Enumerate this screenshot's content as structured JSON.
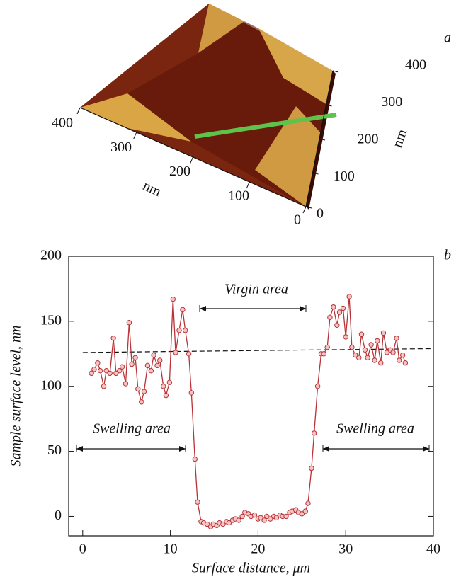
{
  "chart_data": [
    {
      "type": "surface",
      "panel_label": "a",
      "xlabel": "nm",
      "ylabel": "nm",
      "xticks": [
        0,
        100,
        200,
        300,
        400
      ],
      "yticks": [
        0,
        100,
        200,
        300,
        400
      ],
      "xlim": [
        0,
        400
      ],
      "ylim": [
        0,
        400
      ]
    },
    {
      "type": "line",
      "panel_label": "b",
      "xlabel": "Surface distance, μm",
      "ylabel": "Sample surface level, nm",
      "xlim": [
        -1.6,
        40
      ],
      "ylim": [
        -15,
        200
      ],
      "xticks": [
        0,
        10,
        20,
        30,
        40
      ],
      "yticks": [
        0,
        50,
        100,
        150,
        200
      ],
      "annotations": [
        "Virgin area",
        "Swelling area",
        "Swelling area"
      ],
      "reference_line": {
        "x": [
          0,
          40
        ],
        "y": [
          126,
          129
        ]
      },
      "x": [
        1.0,
        1.3,
        1.7,
        2.0,
        2.4,
        2.7,
        3.1,
        3.5,
        3.8,
        4.2,
        4.5,
        4.9,
        5.3,
        5.6,
        6.0,
        6.3,
        6.7,
        7.0,
        7.4,
        7.8,
        8.1,
        8.5,
        8.8,
        9.2,
        9.5,
        9.9,
        10.3,
        10.6,
        11.0,
        11.4,
        11.7,
        12.1,
        12.4,
        12.8,
        13.1,
        13.5,
        13.8,
        14.2,
        14.6,
        14.9,
        15.3,
        15.6,
        16.0,
        16.4,
        16.7,
        17.1,
        17.4,
        17.8,
        18.2,
        18.5,
        18.9,
        19.2,
        19.6,
        20.0,
        20.3,
        20.7,
        21.0,
        21.4,
        21.8,
        22.1,
        22.5,
        22.8,
        23.2,
        23.6,
        23.9,
        24.3,
        24.6,
        25.0,
        25.4,
        25.7,
        26.1,
        26.4,
        26.8,
        27.2,
        27.5,
        27.9,
        28.2,
        28.6,
        29.0,
        29.3,
        29.7,
        30.0,
        30.4,
        30.7,
        31.1,
        31.5,
        31.8,
        32.2,
        32.5,
        32.9,
        33.3,
        33.6,
        34.0,
        34.3,
        34.7,
        35.1,
        35.4,
        35.8,
        36.1,
        36.5,
        36.8
      ],
      "series": [
        {
          "color": "#b83236",
          "values": [
            110,
            113,
            118,
            112,
            100,
            112,
            110,
            137,
            110,
            112,
            115,
            102,
            149,
            117,
            122,
            98,
            88,
            96,
            116,
            112,
            124,
            116,
            120,
            100,
            93,
            103,
            167,
            126,
            143,
            159,
            143,
            125,
            95,
            44,
            11,
            -4,
            -5,
            -6,
            -8,
            -6,
            -7,
            -5,
            -6,
            -4,
            -5,
            -3,
            -2,
            -3,
            0,
            3,
            2,
            0,
            1,
            -2,
            -1,
            -3,
            0,
            -2,
            0,
            -1,
            1,
            0,
            0,
            3,
            4,
            5,
            3,
            2,
            4,
            10,
            37,
            64,
            100,
            125,
            125,
            130,
            153,
            161,
            147,
            157,
            160,
            138,
            169,
            130,
            124,
            122,
            140,
            128,
            122,
            132,
            120,
            135,
            118,
            141,
            126,
            128,
            126,
            137,
            120,
            124,
            118
          ]
        }
      ]
    }
  ]
}
